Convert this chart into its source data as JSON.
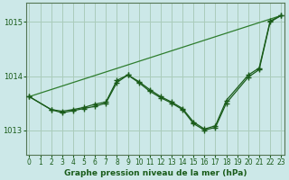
{
  "xlabel": "Graphe pression niveau de la mer (hPa)",
  "bg_color": "#cce8e8",
  "grid_color": "#aaccbb",
  "line_color_dark": "#1a5c1a",
  "line_color_mid": "#2e7d2e",
  "xlim": [
    -0.3,
    23.3
  ],
  "ylim": [
    1012.55,
    1015.35
  ],
  "yticks": [
    1013,
    1014,
    1015
  ],
  "xticks": [
    0,
    1,
    2,
    3,
    4,
    5,
    6,
    7,
    8,
    9,
    10,
    11,
    12,
    13,
    14,
    15,
    16,
    17,
    18,
    19,
    20,
    21,
    22,
    23
  ],
  "line1_x": [
    0,
    23
  ],
  "line1_y": [
    1013.62,
    1015.12
  ],
  "line2_x": [
    0,
    2,
    3,
    4,
    5,
    6,
    7,
    8,
    9,
    10,
    11,
    12,
    13,
    14,
    15,
    16,
    17,
    18,
    20,
    21,
    22,
    23
  ],
  "line2_y": [
    1013.62,
    1013.38,
    1013.35,
    1013.38,
    1013.42,
    1013.48,
    1013.52,
    1013.92,
    1014.02,
    1013.9,
    1013.75,
    1013.62,
    1013.52,
    1013.4,
    1013.15,
    1013.02,
    1013.08,
    1013.55,
    1014.02,
    1014.15,
    1015.02,
    1015.12
  ],
  "line3_x": [
    0,
    2,
    3,
    4,
    5,
    6,
    7,
    8,
    9,
    10,
    11,
    12,
    13,
    14,
    15,
    16,
    17,
    18,
    20,
    21,
    22,
    23
  ],
  "line3_y": [
    1013.62,
    1013.38,
    1013.32,
    1013.36,
    1013.4,
    1013.44,
    1013.5,
    1013.88,
    1014.02,
    1013.88,
    1013.72,
    1013.6,
    1013.5,
    1013.38,
    1013.12,
    1013.0,
    1013.05,
    1013.5,
    1013.98,
    1014.12,
    1015.0,
    1015.12
  ],
  "marker": "+",
  "marker_size": 4,
  "marker_linewidth": 1.0,
  "line_width": 0.9,
  "font_size_label": 6.5,
  "font_size_tick": 5.5,
  "tick_label_color": "#1a5c1a",
  "xlabel_color": "#1a5c1a",
  "spine_color": "#557755"
}
